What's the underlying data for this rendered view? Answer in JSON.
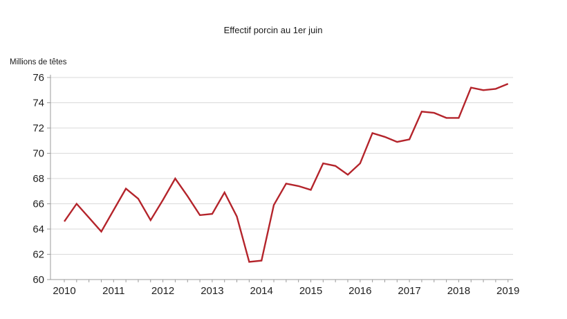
{
  "chart_data": {
    "type": "line",
    "title": "Effectif porcin au 1er juin",
    "ylabel": "Millions de têtes",
    "xlabel": "",
    "legend": "none",
    "grid": "horizontal",
    "ylim": [
      60,
      76
    ],
    "xlim_years": [
      2010,
      2019
    ],
    "y_ticks": [
      60,
      62,
      64,
      66,
      68,
      70,
      72,
      74,
      76
    ],
    "x_tick_labels": [
      "2010",
      "2011",
      "2012",
      "2013",
      "2014",
      "2015",
      "2016",
      "2017",
      "2018",
      "2019"
    ],
    "x_minor_tick_interval_years": 0.25,
    "series_name": "Effectif porcin (millions de têtes)",
    "x": [
      2010.0,
      2010.25,
      2010.5,
      2010.75,
      2011.0,
      2011.25,
      2011.5,
      2011.75,
      2012.0,
      2012.25,
      2012.5,
      2012.75,
      2013.0,
      2013.25,
      2013.5,
      2013.75,
      2014.0,
      2014.25,
      2014.5,
      2014.75,
      2015.0,
      2015.25,
      2015.5,
      2015.75,
      2016.0,
      2016.25,
      2016.5,
      2016.75,
      2017.0,
      2017.25,
      2017.5,
      2017.75,
      2018.0,
      2018.25,
      2018.5,
      2018.75,
      2019.0
    ],
    "values": [
      64.6,
      66.0,
      64.9,
      63.8,
      65.5,
      67.2,
      66.4,
      64.7,
      66.3,
      68.0,
      66.6,
      65.1,
      65.2,
      66.9,
      65.0,
      61.4,
      61.5,
      65.9,
      67.6,
      67.4,
      67.1,
      69.2,
      69.0,
      68.3,
      69.2,
      71.6,
      71.3,
      70.9,
      71.1,
      73.3,
      73.2,
      72.8,
      72.8,
      75.2,
      75.0,
      75.1,
      75.5
    ],
    "line_color": "#b4242b",
    "grid_color": "#d9d9d9",
    "axis_color": "#9b9b9b",
    "text_color": "#1f1f1f"
  }
}
